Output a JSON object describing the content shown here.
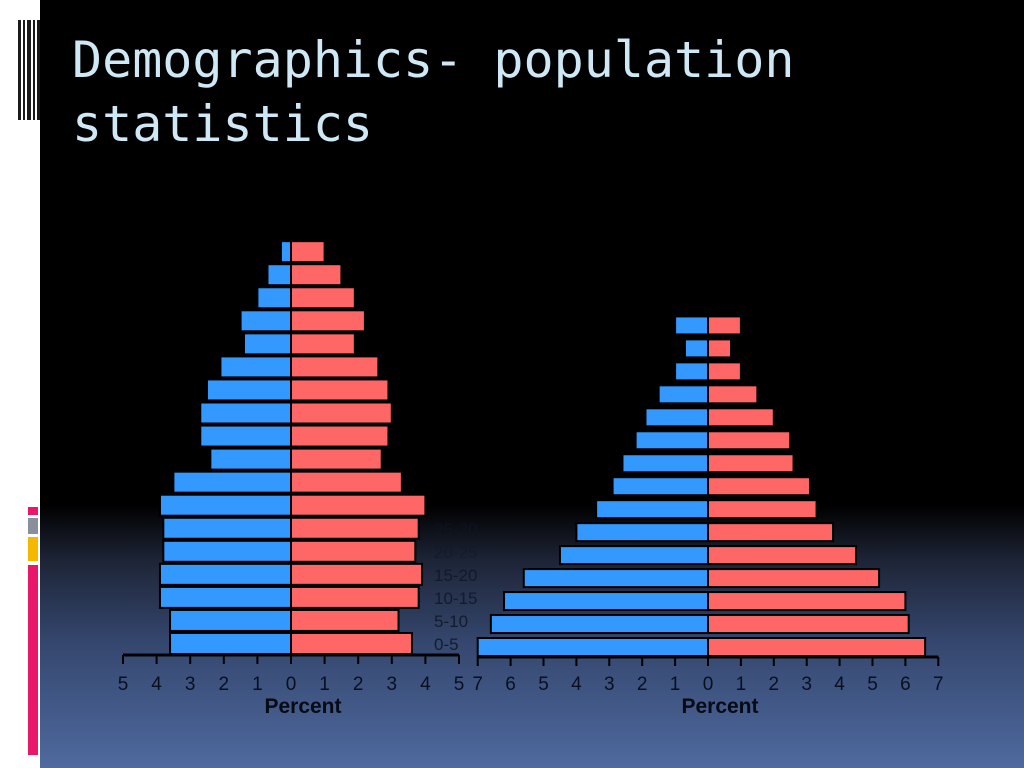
{
  "slide": {
    "title_line1": "Demographics- population",
    "title_line2": "statistics"
  },
  "theme": {
    "male_color": "#3399ff",
    "female_color": "#ff6666",
    "title_color": "#cfe8f5",
    "accent_colors": [
      "#e8176a",
      "#8a8f9e",
      "#f5b800",
      "#e8176a"
    ]
  },
  "chart_data": [
    {
      "type": "bar",
      "orientation": "population-pyramid",
      "xlabel": "Percent",
      "x_ticks": [
        "5",
        "4",
        "3",
        "2",
        "1",
        "0",
        "1",
        "2",
        "3",
        "4",
        "5"
      ],
      "xlim": [
        -5,
        5
      ],
      "age_labels_visible": [
        "0-5",
        "5-10",
        "10-15",
        "15-20",
        "20-25",
        "25-30"
      ],
      "series": [
        {
          "values": [
            3.6,
            3.6,
            3.9,
            3.9,
            3.8,
            3.8,
            3.9,
            3.5,
            2.4,
            2.7,
            2.7,
            2.5,
            2.1,
            1.4,
            1.5,
            1.0,
            0.7,
            0.3
          ]
        },
        {
          "values": [
            3.6,
            3.2,
            3.8,
            3.9,
            3.7,
            3.8,
            4.0,
            3.3,
            2.7,
            2.9,
            3.0,
            2.9,
            2.6,
            1.9,
            2.2,
            1.9,
            1.5,
            1.0
          ]
        }
      ]
    },
    {
      "type": "bar",
      "orientation": "population-pyramid",
      "xlabel": "Percent",
      "x_ticks": [
        "7",
        "6",
        "5",
        "4",
        "3",
        "2",
        "1",
        "0",
        "1",
        "2",
        "3",
        "4",
        "5",
        "6",
        "7"
      ],
      "xlim": [
        -7,
        7
      ],
      "series": [
        {
          "values": [
            7.0,
            6.6,
            6.2,
            5.6,
            4.5,
            4.0,
            3.4,
            2.9,
            2.6,
            2.2,
            1.9,
            1.5,
            1.0,
            0.7,
            1.0
          ]
        },
        {
          "values": [
            6.6,
            6.1,
            6.0,
            5.2,
            4.5,
            3.8,
            3.3,
            3.1,
            2.6,
            2.5,
            2.0,
            1.5,
            1.0,
            0.7,
            1.0
          ]
        }
      ]
    }
  ]
}
